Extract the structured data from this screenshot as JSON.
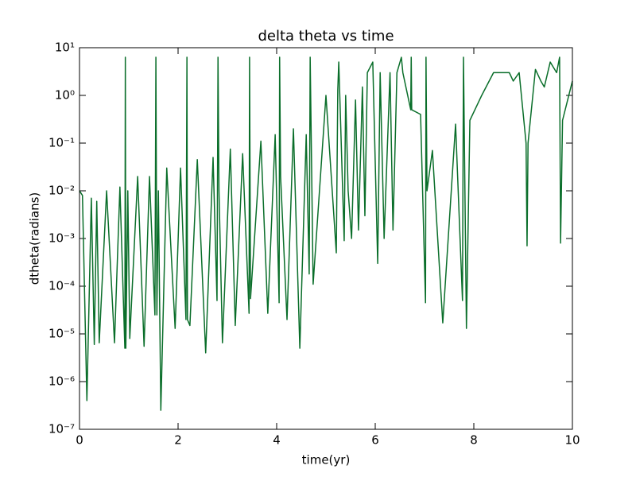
{
  "chart_data": {
    "type": "line",
    "title": "delta theta vs time",
    "x_label": "time(yr)",
    "y_label": "dtheta(radians)",
    "x": [
      0.0,
      0.06,
      0.15,
      0.24,
      0.3,
      0.35,
      0.4,
      0.55,
      0.71,
      0.82,
      0.92,
      0.93,
      0.94,
      0.98,
      1.02,
      1.18,
      1.31,
      1.42,
      1.53,
      1.55,
      1.57,
      1.6,
      1.65,
      1.77,
      1.94,
      2.05,
      2.16,
      2.18,
      2.19,
      2.24,
      2.39,
      2.56,
      2.71,
      2.79,
      2.81,
      2.83,
      2.9,
      3.06,
      3.16,
      3.31,
      3.44,
      3.45,
      3.47,
      3.68,
      3.82,
      3.97,
      4.05,
      4.06,
      4.08,
      4.21,
      4.34,
      4.47,
      4.6,
      4.66,
      4.68,
      4.74,
      5.0,
      5.21,
      5.24,
      5.26,
      5.37,
      5.4,
      5.45,
      5.52,
      5.6,
      5.66,
      5.74,
      5.79,
      5.84,
      5.95,
      6.05,
      6.1,
      6.18,
      6.3,
      6.36,
      6.44,
      6.53,
      6.56,
      6.72,
      6.73,
      6.74,
      6.92,
      7.02,
      7.03,
      7.05,
      7.16,
      7.37,
      7.63,
      7.77,
      7.79,
      7.85,
      7.92,
      8.16,
      8.4,
      8.6,
      8.72,
      8.8,
      8.92,
      9.06,
      9.08,
      9.1,
      9.25,
      9.36,
      9.43,
      9.55,
      9.68,
      9.74,
      9.76,
      9.8,
      10.0
    ],
    "values": [
      0.01,
      0.008,
      4e-07,
      0.007,
      6e-06,
      0.006,
      6.5e-06,
      0.01,
      6.5e-06,
      0.012,
      5e-06,
      6.3,
      5e-06,
      0.01,
      8e-06,
      0.02,
      5.5e-06,
      0.02,
      2.5e-05,
      6.3,
      2.5e-05,
      0.01,
      2.5e-07,
      0.03,
      1.3e-05,
      0.03,
      2e-05,
      6.3,
      2e-05,
      1.5e-05,
      0.045,
      4e-06,
      0.05,
      5e-05,
      6.3,
      0.01,
      6.5e-06,
      0.075,
      1.5e-05,
      0.06,
      2.7e-05,
      6.3,
      5.5e-05,
      0.11,
      2.7e-05,
      0.15,
      4.5e-05,
      6.3,
      0.02,
      2e-05,
      0.2,
      5e-06,
      0.15,
      0.00018,
      6.3,
      0.00011,
      1.0,
      0.0005,
      1.3,
      5,
      0.0009,
      1.0,
      0.01,
      0.001,
      0.8,
      0.0015,
      1.5,
      0.003,
      3,
      5,
      0.0003,
      3,
      0.001,
      3,
      0.0015,
      3,
      6.3,
      3,
      0.5,
      6.3,
      0.5,
      0.4,
      4.5e-05,
      6.3,
      0.01,
      0.07,
      1.7e-05,
      0.25,
      5e-05,
      6.3,
      1.3e-05,
      0.3,
      1.0,
      3,
      3,
      3,
      2,
      3,
      0.1,
      0.0007,
      0.1,
      3.5,
      2,
      1.5,
      5,
      3,
      6.3,
      0.0008,
      0.3,
      2
    ],
    "color": "#0a6e2a",
    "xlim": [
      0,
      10
    ],
    "xticks": [
      0,
      2,
      4,
      6,
      8,
      10
    ],
    "ylim": [
      1e-07,
      10
    ],
    "yscale": "log",
    "yticks": [
      {
        "value": 1e-07,
        "label": "10⁻⁷"
      },
      {
        "value": 1e-06,
        "label": "10⁻⁶"
      },
      {
        "value": 1e-05,
        "label": "10⁻⁵"
      },
      {
        "value": 0.0001,
        "label": "10⁻⁴"
      },
      {
        "value": 0.001,
        "label": "10⁻³"
      },
      {
        "value": 0.01,
        "label": "10⁻²"
      },
      {
        "value": 0.1,
        "label": "10⁻¹"
      },
      {
        "value": 1,
        "label": "10⁰"
      },
      {
        "value": 10,
        "label": "10¹"
      }
    ]
  }
}
